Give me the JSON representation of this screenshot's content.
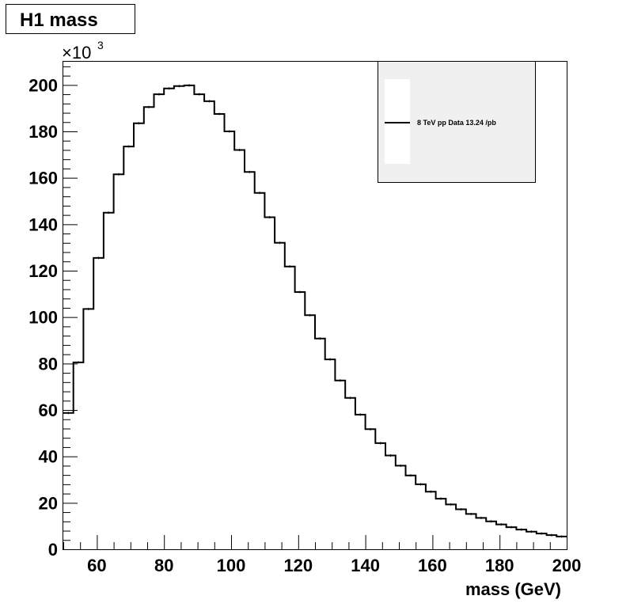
{
  "chart_data": {
    "type": "bar",
    "title": "H1 mass",
    "xlabel": "mass (GeV)",
    "ylabel": "",
    "y_multiplier": "×10",
    "y_multiplier_exp": "3",
    "xlim": [
      50,
      200
    ],
    "ylim": [
      0,
      210
    ],
    "x_ticks": [
      60,
      80,
      100,
      120,
      140,
      160,
      180,
      200
    ],
    "x_tick_labels": [
      "60",
      "80",
      "100",
      "120",
      "140",
      "160",
      "180",
      "200"
    ],
    "y_ticks": [
      0,
      20,
      40,
      60,
      80,
      100,
      120,
      140,
      160,
      180,
      200
    ],
    "y_tick_labels": [
      "0",
      "20",
      "40",
      "60",
      "80",
      "100",
      "120",
      "140",
      "160",
      "180",
      "200"
    ],
    "grid": false,
    "legend_position": "top-right",
    "series": [
      {
        "name": "8 TeV pp Data 13.24 /pb",
        "bin_edges": [
          50,
          53,
          56,
          59,
          62,
          65,
          68,
          71,
          74,
          77,
          80,
          83,
          86,
          89,
          92,
          95,
          98,
          101,
          104,
          107,
          110,
          113,
          116,
          119,
          122,
          125,
          128,
          131,
          134,
          137,
          140,
          143,
          146,
          149,
          152,
          155,
          158,
          161,
          164,
          167,
          170,
          173,
          176,
          179,
          182,
          185,
          188,
          191,
          194,
          197,
          200
        ],
        "values": [
          58.7,
          80.5,
          103.5,
          125.5,
          145.0,
          161.5,
          173.5,
          183.5,
          190.5,
          196.0,
          198.5,
          199.5,
          199.8,
          196.0,
          193.0,
          187.5,
          180.0,
          172.0,
          162.5,
          153.5,
          143.0,
          132.0,
          121.8,
          110.8,
          100.8,
          90.8,
          81.8,
          72.7,
          65.2,
          58.0,
          51.7,
          45.7,
          40.4,
          36.0,
          31.8,
          28.0,
          24.8,
          21.8,
          19.3,
          17.2,
          15.2,
          13.5,
          12.0,
          10.7,
          9.5,
          8.5,
          7.6,
          6.8,
          6.1,
          5.5
        ]
      }
    ]
  }
}
